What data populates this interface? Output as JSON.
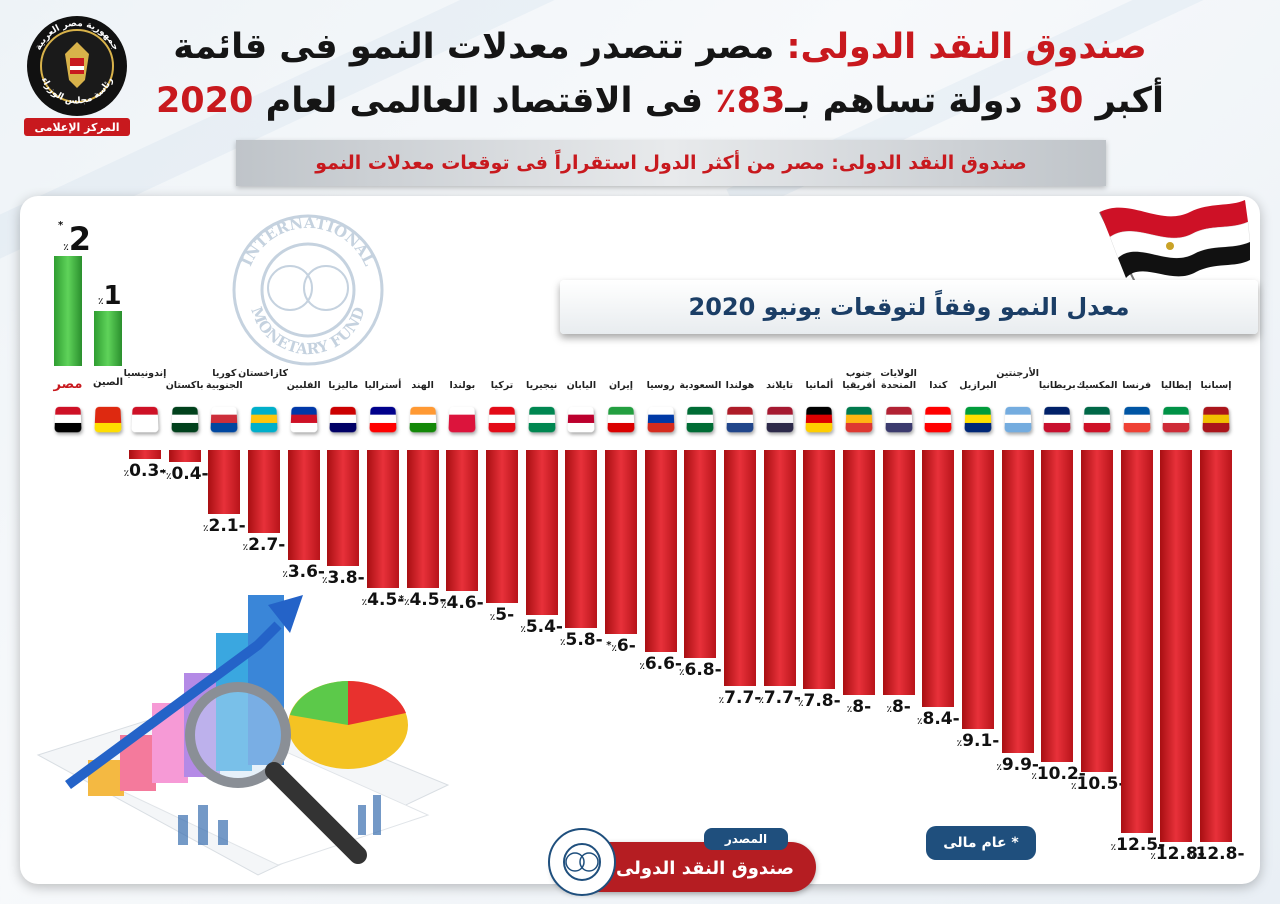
{
  "header": {
    "title_line1_prefix": "صندوق النقد الدولى:",
    "title_line1_rest": "مصر تتصدر معدلات النمو فى قائمة",
    "title_line2_part1": "أكبر",
    "title_line2_num30": "30",
    "title_line2_part2": "دولة تساهم بـ",
    "title_line2_pct": "83٪",
    "title_line2_part3": "فى الاقتصاد العالمى لعام",
    "title_line2_year": "2020",
    "subtitle": "صندوق النقد الدولى: مصر من أكثر الدول استقراراً فى توقعات معدلات النمو"
  },
  "logo": {
    "line1": "جمهورية مصر العربية",
    "line2": "رئاسة مجلس الوزراء",
    "line3": "المركز الإعلامى"
  },
  "chart_data": {
    "type": "bar",
    "title": "معدل النمو وفقاً لتوقعات يونيو 2020",
    "unit": "٪",
    "positive": [
      {
        "country": "مصر",
        "value": 2,
        "label": "2",
        "asterisk": true
      },
      {
        "country": "الصين",
        "value": 1,
        "label": "1",
        "asterisk": false
      }
    ],
    "negative": [
      {
        "country": "إندونيسيا",
        "value": -0.3,
        "label": "0.3-",
        "asterisk": false
      },
      {
        "country": "باكستان",
        "value": -0.4,
        "label": "0.4-",
        "asterisk": true
      },
      {
        "country": "كوريا الجنوبية",
        "value": -2.1,
        "label": "2.1-",
        "asterisk": false
      },
      {
        "country": "كازاخستان",
        "value": -2.7,
        "label": "2.7-",
        "asterisk": false
      },
      {
        "country": "الفلبين",
        "value": -3.6,
        "label": "3.6-",
        "asterisk": false
      },
      {
        "country": "ماليزيا",
        "value": -3.8,
        "label": "3.8-",
        "asterisk": false
      },
      {
        "country": "أستراليا",
        "value": -4.5,
        "label": "4.5-",
        "asterisk": false
      },
      {
        "country": "الهند",
        "value": -4.5,
        "label": "4.5-",
        "asterisk": true
      },
      {
        "country": "بولندا",
        "value": -4.6,
        "label": "4.6-",
        "asterisk": false
      },
      {
        "country": "تركيا",
        "value": -5,
        "label": "5-",
        "asterisk": false
      },
      {
        "country": "نيجيريا",
        "value": -5.4,
        "label": "5.4-",
        "asterisk": false
      },
      {
        "country": "اليابان",
        "value": -5.8,
        "label": "5.8-",
        "asterisk": false
      },
      {
        "country": "إيران",
        "value": -6,
        "label": "6-",
        "asterisk": true
      },
      {
        "country": "روسيا",
        "value": -6.6,
        "label": "6.6-",
        "asterisk": false
      },
      {
        "country": "السعودية",
        "value": -6.8,
        "label": "6.8-",
        "asterisk": false
      },
      {
        "country": "هولندا",
        "value": -7.7,
        "label": "7.7-",
        "asterisk": false
      },
      {
        "country": "تايلاند",
        "value": -7.7,
        "label": "7.7-",
        "asterisk": false
      },
      {
        "country": "ألمانيا",
        "value": -7.8,
        "label": "7.8-",
        "asterisk": false
      },
      {
        "country": "جنوب أفريقيا",
        "value": -8,
        "label": "8-",
        "asterisk": false
      },
      {
        "country": "الولايات المتحدة",
        "value": -8,
        "label": "8-",
        "asterisk": false
      },
      {
        "country": "كندا",
        "value": -8.4,
        "label": "8.4-",
        "asterisk": false
      },
      {
        "country": "البرازيل",
        "value": -9.1,
        "label": "9.1-",
        "asterisk": false
      },
      {
        "country": "الأرجنتين",
        "value": -9.9,
        "label": "9.9-",
        "asterisk": false
      },
      {
        "country": "بريطانيا",
        "value": -10.2,
        "label": "10.2-",
        "asterisk": false
      },
      {
        "country": "المكسيك",
        "value": -10.5,
        "label": "10.5-",
        "asterisk": false
      },
      {
        "country": "فرنسا",
        "value": -12.5,
        "label": "12.5-",
        "asterisk": false
      },
      {
        "country": "إيطاليا",
        "value": -12.8,
        "label": "12.8-",
        "asterisk": false
      },
      {
        "country": "إسبانيا",
        "value": -12.8,
        "label": "12.8-",
        "asterisk": false
      }
    ]
  },
  "flag_colors": {
    "مصر": [
      "#ce1126",
      "#ffffff",
      "#000000"
    ],
    "الصين": [
      "#de2910",
      "#de2910",
      "#ffde00"
    ],
    "إندونيسيا": [
      "#ce1126",
      "#ffffff",
      "#ffffff"
    ],
    "باكستان": [
      "#01411c",
      "#ffffff",
      "#01411c"
    ],
    "كوريا الجنوبية": [
      "#ffffff",
      "#cd2e3a",
      "#0047a0"
    ],
    "كازاخستان": [
      "#00afca",
      "#fec50c",
      "#00afca"
    ],
    "الفلبين": [
      "#0038a8",
      "#ce1126",
      "#ffffff"
    ],
    "ماليزيا": [
      "#cc0001",
      "#ffffff",
      "#010066"
    ],
    "أستراليا": [
      "#00008b",
      "#ffffff",
      "#ff0000"
    ],
    "الهند": [
      "#ff9933",
      "#ffffff",
      "#138808"
    ],
    "بولندا": [
      "#ffffff",
      "#dc143c",
      "#dc143c"
    ],
    "تركيا": [
      "#e30a17",
      "#ffffff",
      "#e30a17"
    ],
    "نيجيريا": [
      "#008751",
      "#ffffff",
      "#008751"
    ],
    "اليابان": [
      "#ffffff",
      "#bc002d",
      "#ffffff"
    ],
    "إيران": [
      "#239f40",
      "#ffffff",
      "#da0000"
    ],
    "روسيا": [
      "#ffffff",
      "#0039a6",
      "#d52b1e"
    ],
    "السعودية": [
      "#006c35",
      "#ffffff",
      "#006c35"
    ],
    "هولندا": [
      "#ae1c28",
      "#ffffff",
      "#21468b"
    ],
    "تايلاند": [
      "#a51931",
      "#f4f5f8",
      "#2d2a4a"
    ],
    "ألمانيا": [
      "#000000",
      "#dd0000",
      "#ffce00"
    ],
    "جنوب أفريقيا": [
      "#007a4d",
      "#ffb612",
      "#de3831"
    ],
    "الولايات المتحدة": [
      "#b22234",
      "#ffffff",
      "#3c3b6e"
    ],
    "كندا": [
      "#ff0000",
      "#ffffff",
      "#ff0000"
    ],
    "البرازيل": [
      "#009c3b",
      "#ffdf00",
      "#002776"
    ],
    "الأرجنتين": [
      "#74acdf",
      "#ffffff",
      "#74acdf"
    ],
    "بريطانيا": [
      "#012169",
      "#ffffff",
      "#c8102e"
    ],
    "المكسيك": [
      "#006847",
      "#ffffff",
      "#ce1126"
    ],
    "فرنسا": [
      "#0055a4",
      "#ffffff",
      "#ef4135"
    ],
    "إيطاليا": [
      "#009246",
      "#ffffff",
      "#ce2b37"
    ],
    "إسبانيا": [
      "#aa151b",
      "#f1bf00",
      "#aa151b"
    ]
  },
  "note": "* عام مالى",
  "source": {
    "label": "المصدر",
    "name": "صندوق النقد الدولى"
  },
  "watermark": {
    "text_top": "INTERNATIONAL",
    "text_bottom": "MONETARY FUND"
  },
  "colors": {
    "accent_red": "#c8191e",
    "navy": "#1f4f7d",
    "positive_green": "#4cc24a"
  }
}
